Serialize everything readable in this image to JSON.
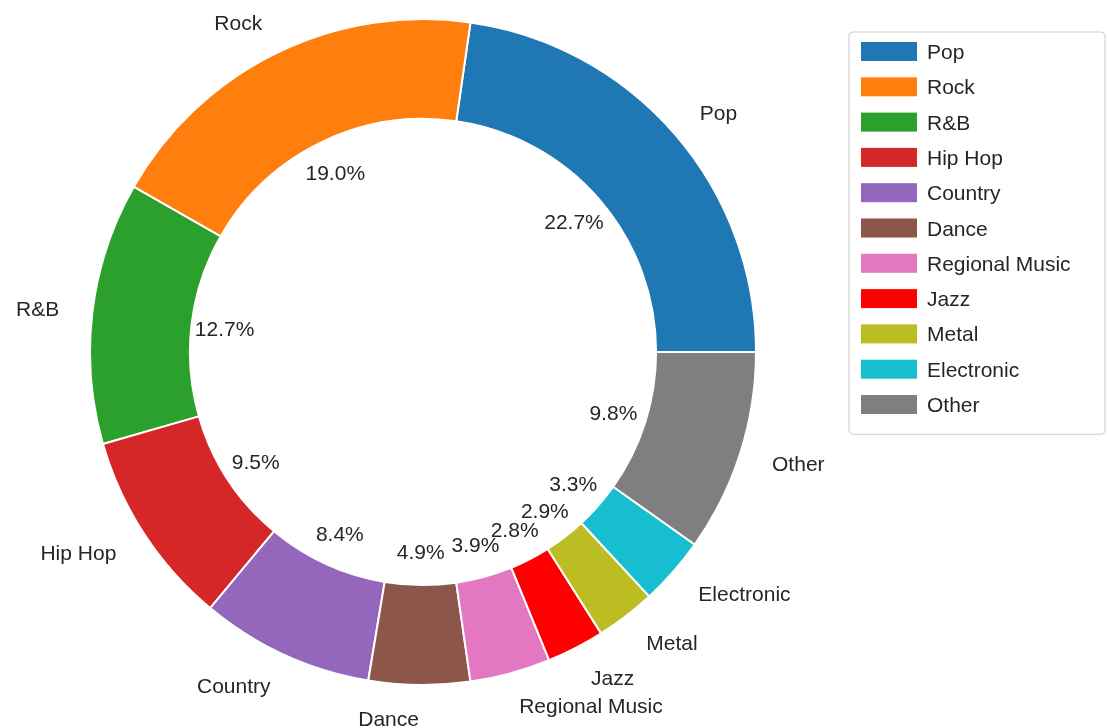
{
  "chart_data": {
    "type": "donut",
    "categories": [
      "Pop",
      "Rock",
      "R&B",
      "Hip Hop",
      "Country",
      "Dance",
      "Regional Music",
      "Jazz",
      "Metal",
      "Electronic",
      "Other"
    ],
    "values": [
      22.7,
      19.0,
      12.7,
      9.5,
      8.4,
      4.9,
      3.9,
      2.8,
      2.9,
      3.3,
      9.8
    ],
    "value_labels": [
      "22.7%",
      "19.0%",
      "12.7%",
      "9.5%",
      "8.4%",
      "4.9%",
      "3.9%",
      "2.8%",
      "2.9%",
      "3.3%",
      "9.8%"
    ],
    "colors": [
      "#1f77b4",
      "#ff7f0e",
      "#2ca02c",
      "#d62728",
      "#9467bd",
      "#8c564b",
      "#e377c2",
      "#ff0000",
      "#bcbd22",
      "#17becf",
      "#7f7f7f"
    ],
    "legend": "top right"
  }
}
